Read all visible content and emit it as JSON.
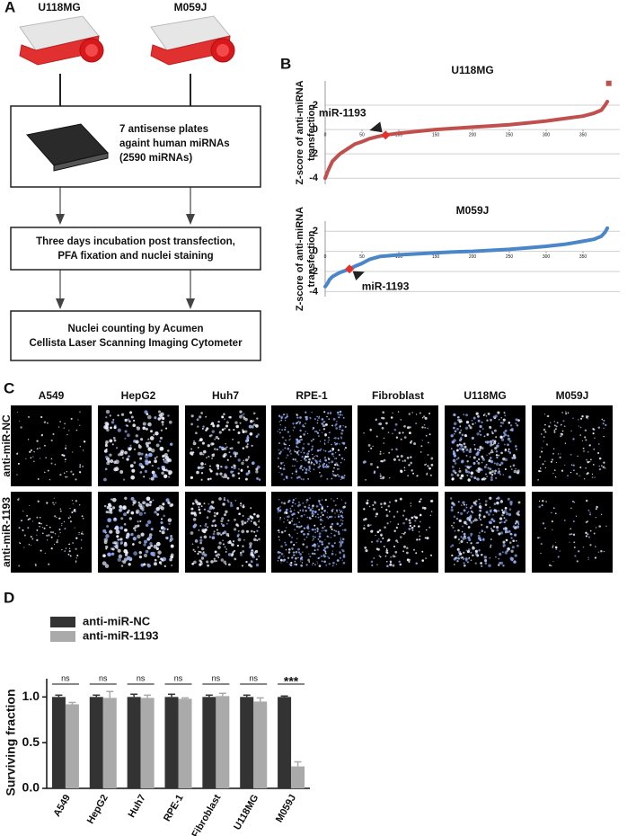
{
  "panels": {
    "a": "A",
    "b": "B",
    "c": "C",
    "d": "D"
  },
  "flowchart": {
    "cell_lines": [
      "U118MG",
      "M059J"
    ],
    "steps": [
      [
        "7 antisense plates",
        "againt human miRNAs",
        "(2590 miRNAs)"
      ],
      [
        "Three days incubation post transfection,",
        "PFA fixation and nuclei staining"
      ],
      [
        "Nuclei counting by Acumen",
        "Cellista Laser Scanning Imaging Cytometer"
      ]
    ]
  },
  "images": {
    "columns": [
      "A549",
      "HepG2",
      "Huh7",
      "RPE-1",
      "Fibroblast",
      "U118MG",
      "M059J"
    ],
    "rows": [
      "anti-miR-NC",
      "anti-miR-1193"
    ]
  },
  "chart_data": [
    {
      "type": "line",
      "title": "U118MG",
      "ylabel": [
        "Z-score of anti-miRNA",
        "transfection"
      ],
      "xlim": [
        0,
        400
      ],
      "ylim": [
        -4.5,
        4
      ],
      "xticks": [
        0,
        50,
        100,
        150,
        200,
        250,
        300,
        350
      ],
      "yticks": [
        2,
        0,
        -2,
        -4
      ],
      "grid": true,
      "series": [
        {
          "color": "#c0504d",
          "x": [
            0,
            3,
            6,
            10,
            15,
            20,
            30,
            40,
            50,
            60,
            70,
            82,
            100,
            125,
            150,
            175,
            200,
            225,
            250,
            275,
            300,
            325,
            350,
            365,
            375,
            380,
            383
          ],
          "values": [
            -4.0,
            -3.5,
            -3.1,
            -2.6,
            -2.3,
            -2.0,
            -1.6,
            -1.2,
            -1.0,
            -0.75,
            -0.6,
            -0.45,
            -0.3,
            -0.15,
            0.0,
            0.1,
            0.2,
            0.3,
            0.4,
            0.55,
            0.7,
            0.9,
            1.1,
            1.35,
            1.6,
            2.0,
            2.3
          ]
        }
      ],
      "highlight": {
        "label": "miR-1193",
        "x": 82,
        "y": -0.45,
        "color": "#e8302a"
      },
      "outlier": {
        "x": 385,
        "y": 3.8
      }
    },
    {
      "type": "line",
      "title": "M059J",
      "ylabel": [
        "Z-score of anti-miRNA",
        "transfection"
      ],
      "xlim": [
        0,
        400
      ],
      "ylim": [
        -4.5,
        3
      ],
      "xticks": [
        0,
        50,
        100,
        150,
        200,
        250,
        300,
        350
      ],
      "yticks": [
        2,
        0,
        -2,
        -4
      ],
      "grid": true,
      "series": [
        {
          "color": "#4a86c8",
          "x": [
            0,
            3,
            6,
            10,
            15,
            20,
            26,
            33,
            40,
            50,
            60,
            75,
            100,
            125,
            150,
            175,
            200,
            225,
            250,
            275,
            300,
            325,
            350,
            365,
            375,
            380,
            383
          ],
          "values": [
            -3.5,
            -3.2,
            -2.8,
            -2.5,
            -2.3,
            -2.1,
            -1.95,
            -1.75,
            -1.5,
            -1.2,
            -0.8,
            -0.5,
            -0.35,
            -0.25,
            -0.15,
            -0.05,
            0.0,
            0.1,
            0.2,
            0.35,
            0.5,
            0.7,
            1.0,
            1.2,
            1.5,
            1.9,
            2.3
          ]
        }
      ],
      "highlight": {
        "label": "miR-1193",
        "x": 33,
        "y": -1.75,
        "color": "#e8302a"
      }
    },
    {
      "type": "bar",
      "ylabel": "Surviving fraction",
      "categories": [
        "A549",
        "HepG2",
        "Huh7",
        "RPE-1",
        "Fibroblast",
        "U118MG",
        "M059J"
      ],
      "ylim": [
        0,
        1.2
      ],
      "yticks": [
        {
          "value": 0,
          "label": "0.0"
        },
        {
          "value": 0.5,
          "label": "0.5"
        },
        {
          "value": 1,
          "label": "1.0"
        }
      ],
      "legend": "upper left",
      "series": [
        {
          "name": "anti-miR-NC",
          "color": "#333333",
          "values": [
            1.0,
            1.0,
            1.0,
            1.0,
            1.0,
            1.0,
            1.0
          ],
          "errors": [
            0.02,
            0.02,
            0.03,
            0.03,
            0.02,
            0.02,
            0.01
          ]
        },
        {
          "name": "anti-miR-1193",
          "color": "#aaaaaa",
          "values": [
            0.92,
            0.99,
            0.99,
            0.98,
            1.01,
            0.95,
            0.24
          ],
          "errors": [
            0.02,
            0.07,
            0.03,
            0.01,
            0.03,
            0.04,
            0.05
          ]
        }
      ],
      "significance": [
        "ns",
        "ns",
        "ns",
        "ns",
        "ns",
        "ns",
        "***"
      ]
    }
  ]
}
